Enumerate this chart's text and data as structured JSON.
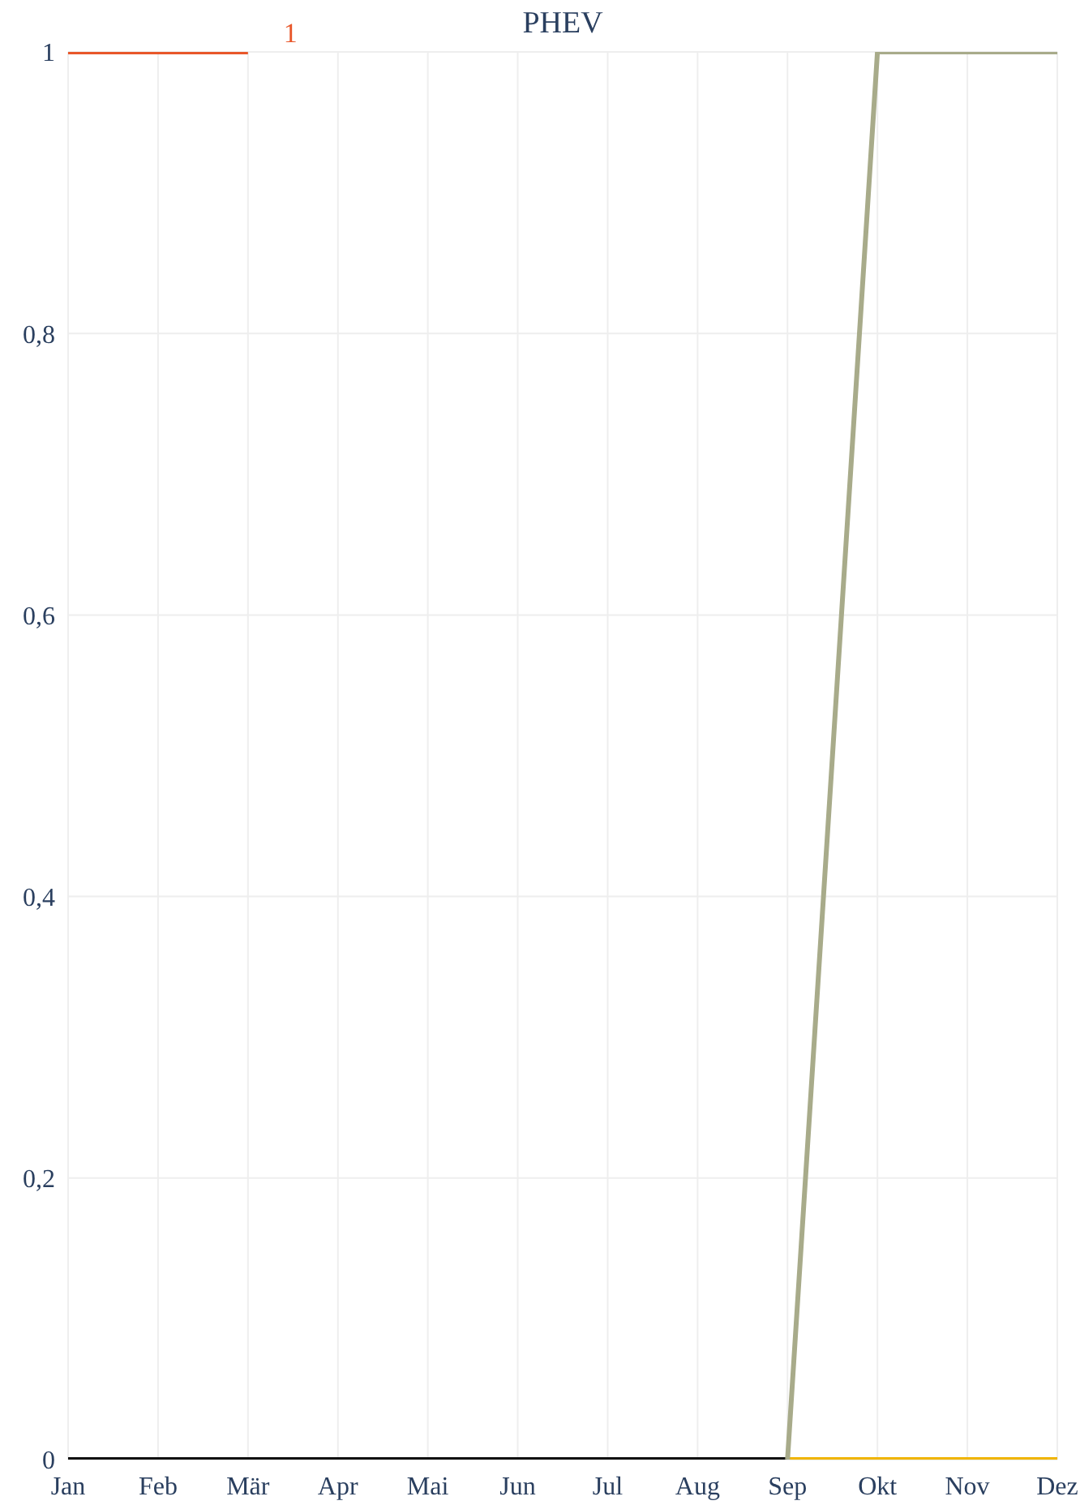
{
  "chart_data": {
    "type": "line",
    "title": "PHEV",
    "categories": [
      "Jan",
      "Feb",
      "Mär",
      "Apr",
      "Mai",
      "Jun",
      "Jul",
      "Aug",
      "Sep",
      "Okt",
      "Nov",
      "Dez"
    ],
    "series": [
      {
        "color": "#e8572a",
        "values": [
          1,
          1,
          1,
          null,
          null,
          null,
          null,
          null,
          null,
          null,
          null,
          null
        ],
        "value_labels": [
          null,
          null,
          "1",
          null,
          null,
          null,
          null,
          null,
          null,
          null,
          null,
          null
        ]
      },
      {
        "color": "#111111",
        "values": [
          0,
          0,
          0,
          0,
          0,
          0,
          0,
          0,
          0,
          null,
          null,
          null
        ]
      },
      {
        "color": "#f0b400",
        "values": [
          null,
          null,
          null,
          null,
          null,
          null,
          null,
          null,
          0,
          0,
          0,
          0
        ]
      },
      {
        "color": "#a8ab8a",
        "values": [
          null,
          null,
          null,
          null,
          null,
          null,
          null,
          null,
          0,
          1,
          1,
          1
        ]
      }
    ],
    "ylim": [
      0,
      1
    ],
    "yticks": [
      0,
      {
        "value": 0.2,
        "label": "0,2"
      },
      {
        "value": 0.4,
        "label": "0,4"
      },
      {
        "value": 0.6,
        "label": "0,6"
      },
      {
        "value": 0.8,
        "label": "0,8"
      },
      1
    ],
    "grid": true,
    "legend": false,
    "marker": "none",
    "line_style": "solid"
  }
}
